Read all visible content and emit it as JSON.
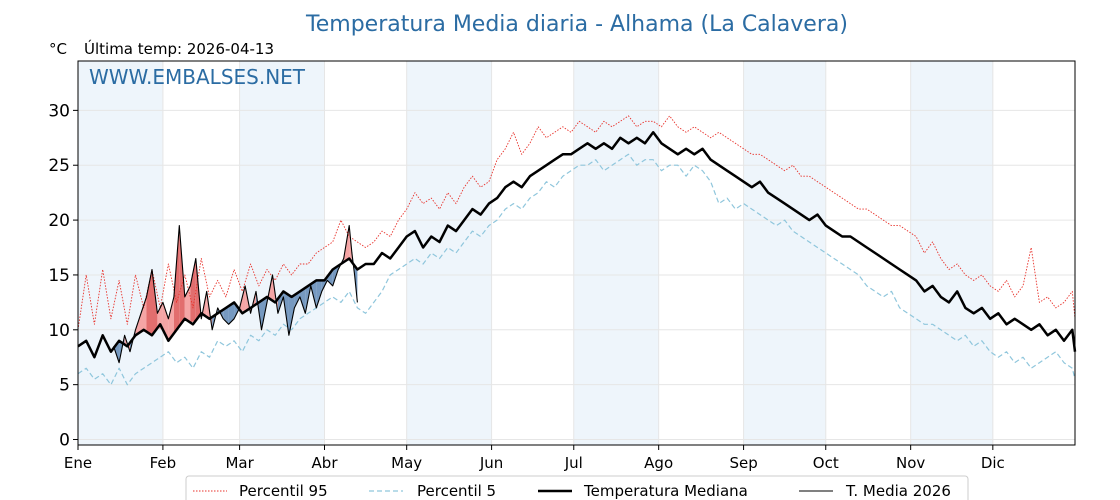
{
  "colors": {
    "title": "#2b6ca3",
    "p95": "#e8322b",
    "p5": "#8fc6dc",
    "median": "#000000",
    "current": "#000000",
    "above_fill": "#f4a0a0",
    "above_fill_strong": "#e06666",
    "below_fill": "#6f94bd",
    "band": "#eef5fb",
    "grid": "#e6e6e6"
  },
  "chart_data": {
    "type": "line",
    "title": "Temperatura Media diaria - Alhama (La Calavera)",
    "unit_label": "°C",
    "last_temp_label": "Última temp: 2026-04-13",
    "watermark": "WWW.EMBALSES.NET",
    "ylim": [
      -0.5,
      34.5
    ],
    "xlim": [
      1,
      365
    ],
    "y_ticks": [
      0,
      5,
      10,
      15,
      20,
      25,
      30
    ],
    "y_tick_labels": [
      "0",
      "5",
      "10",
      "15",
      "20",
      "25",
      "30"
    ],
    "x_ticks": [
      1,
      32,
      60,
      91,
      121,
      152,
      182,
      213,
      244,
      274,
      305,
      335
    ],
    "x_tick_labels": [
      "Ene",
      "Feb",
      "Mar",
      "Abr",
      "May",
      "Jun",
      "Jul",
      "Ago",
      "Sep",
      "Oct",
      "Nov",
      "Dic"
    ],
    "shaded_months": [
      "Ene",
      "Mar",
      "May",
      "Jul",
      "Sep",
      "Nov"
    ],
    "grid": true,
    "legend_position": "bottom-center",
    "series": [
      {
        "name": "Percentil 95",
        "style": "dotted-red",
        "x": [
          1,
          4,
          7,
          10,
          13,
          16,
          19,
          22,
          25,
          28,
          31,
          34,
          37,
          40,
          43,
          46,
          49,
          52,
          55,
          58,
          61,
          64,
          67,
          70,
          73,
          76,
          79,
          82,
          85,
          88,
          91,
          94,
          97,
          100,
          103,
          106,
          109,
          112,
          115,
          118,
          121,
          124,
          127,
          130,
          133,
          136,
          139,
          142,
          145,
          148,
          151,
          154,
          157,
          160,
          163,
          166,
          169,
          172,
          175,
          178,
          181,
          184,
          187,
          190,
          193,
          196,
          199,
          202,
          205,
          208,
          211,
          214,
          217,
          220,
          223,
          226,
          229,
          232,
          235,
          238,
          241,
          244,
          247,
          250,
          253,
          256,
          259,
          262,
          265,
          268,
          271,
          274,
          277,
          280,
          283,
          286,
          289,
          292,
          295,
          298,
          301,
          304,
          307,
          310,
          313,
          316,
          319,
          322,
          325,
          328,
          331,
          334,
          337,
          340,
          343,
          346,
          349,
          352,
          355,
          358,
          361,
          364,
          365
        ],
        "values": [
          10.0,
          15.0,
          10.5,
          15.5,
          11.0,
          14.5,
          10.5,
          15.0,
          12.0,
          15.5,
          12.0,
          16.0,
          12.5,
          15.0,
          12.0,
          16.5,
          13.0,
          14.5,
          13.0,
          15.5,
          13.5,
          16.0,
          14.0,
          15.5,
          14.5,
          16.0,
          15.0,
          16.0,
          16.0,
          17.0,
          17.5,
          18.0,
          20.0,
          18.5,
          18.0,
          17.5,
          18.0,
          19.0,
          18.5,
          20.0,
          21.0,
          22.5,
          21.5,
          22.0,
          21.0,
          22.5,
          21.5,
          23.0,
          24.0,
          23.0,
          23.5,
          25.5,
          26.5,
          28.0,
          26.0,
          27.0,
          28.5,
          27.5,
          28.0,
          28.5,
          28.0,
          29.0,
          28.5,
          28.0,
          29.0,
          28.5,
          29.0,
          29.5,
          28.5,
          29.0,
          29.0,
          28.5,
          29.5,
          28.5,
          28.0,
          28.5,
          28.0,
          27.5,
          28.0,
          27.5,
          27.0,
          26.5,
          26.0,
          26.0,
          25.5,
          25.0,
          24.5,
          25.0,
          24.0,
          24.0,
          23.5,
          23.0,
          22.5,
          22.0,
          21.5,
          21.0,
          21.0,
          20.5,
          20.0,
          19.5,
          19.5,
          19.0,
          18.5,
          17.0,
          18.0,
          16.5,
          15.5,
          16.0,
          15.0,
          14.5,
          15.0,
          14.0,
          13.5,
          14.5,
          13.0,
          14.0,
          17.5,
          12.5,
          13.0,
          12.0,
          12.5,
          13.5,
          11.0
        ]
      },
      {
        "name": "Percentil 5",
        "style": "dashed-lightblue",
        "x": [
          1,
          4,
          7,
          10,
          13,
          16,
          19,
          22,
          25,
          28,
          31,
          34,
          37,
          40,
          43,
          46,
          49,
          52,
          55,
          58,
          61,
          64,
          67,
          70,
          73,
          76,
          79,
          82,
          85,
          88,
          91,
          94,
          97,
          100,
          103,
          106,
          109,
          112,
          115,
          118,
          121,
          124,
          127,
          130,
          133,
          136,
          139,
          142,
          145,
          148,
          151,
          154,
          157,
          160,
          163,
          166,
          169,
          172,
          175,
          178,
          181,
          184,
          187,
          190,
          193,
          196,
          199,
          202,
          205,
          208,
          211,
          214,
          217,
          220,
          223,
          226,
          229,
          232,
          235,
          238,
          241,
          244,
          247,
          250,
          253,
          256,
          259,
          262,
          265,
          268,
          271,
          274,
          277,
          280,
          283,
          286,
          289,
          292,
          295,
          298,
          301,
          304,
          307,
          310,
          313,
          316,
          319,
          322,
          325,
          328,
          331,
          334,
          337,
          340,
          343,
          346,
          349,
          352,
          355,
          358,
          361,
          364,
          365
        ],
        "values": [
          6.0,
          6.5,
          5.5,
          6.0,
          5.0,
          6.5,
          5.0,
          6.0,
          6.5,
          7.0,
          7.5,
          8.0,
          7.0,
          7.5,
          6.5,
          8.0,
          7.5,
          9.0,
          8.5,
          9.0,
          8.0,
          9.5,
          9.0,
          10.0,
          9.5,
          10.5,
          10.0,
          11.0,
          11.5,
          12.0,
          12.5,
          13.0,
          12.5,
          13.5,
          12.0,
          11.5,
          12.5,
          13.5,
          15.0,
          15.5,
          16.0,
          16.5,
          16.0,
          17.0,
          16.5,
          17.5,
          17.0,
          18.0,
          19.0,
          18.5,
          19.5,
          20.0,
          21.0,
          21.5,
          21.0,
          22.0,
          22.5,
          23.5,
          23.0,
          24.0,
          24.5,
          25.0,
          25.0,
          25.5,
          24.5,
          25.0,
          25.5,
          26.0,
          25.0,
          25.5,
          25.5,
          24.5,
          25.0,
          25.0,
          24.0,
          25.0,
          24.5,
          23.5,
          21.5,
          22.0,
          21.0,
          21.5,
          21.0,
          20.5,
          20.0,
          19.5,
          20.0,
          19.0,
          18.5,
          18.0,
          17.5,
          17.0,
          16.5,
          16.0,
          15.5,
          15.0,
          14.0,
          13.5,
          13.0,
          13.5,
          12.0,
          11.5,
          11.0,
          10.5,
          10.5,
          10.0,
          9.5,
          9.0,
          9.5,
          8.5,
          9.0,
          8.0,
          7.5,
          8.0,
          7.0,
          7.5,
          6.5,
          7.0,
          7.5,
          8.0,
          7.0,
          6.5,
          5.5
        ]
      },
      {
        "name": "Temperatura Mediana",
        "style": "thick-black",
        "x": [
          1,
          4,
          7,
          10,
          13,
          16,
          19,
          22,
          25,
          28,
          31,
          34,
          37,
          40,
          43,
          46,
          49,
          52,
          55,
          58,
          61,
          64,
          67,
          70,
          73,
          76,
          79,
          82,
          85,
          88,
          91,
          94,
          97,
          100,
          103,
          106,
          109,
          112,
          115,
          118,
          121,
          124,
          127,
          130,
          133,
          136,
          139,
          142,
          145,
          148,
          151,
          154,
          157,
          160,
          163,
          166,
          169,
          172,
          175,
          178,
          181,
          184,
          187,
          190,
          193,
          196,
          199,
          202,
          205,
          208,
          211,
          214,
          217,
          220,
          223,
          226,
          229,
          232,
          235,
          238,
          241,
          244,
          247,
          250,
          253,
          256,
          259,
          262,
          265,
          268,
          271,
          274,
          277,
          280,
          283,
          286,
          289,
          292,
          295,
          298,
          301,
          304,
          307,
          310,
          313,
          316,
          319,
          322,
          325,
          328,
          331,
          334,
          337,
          340,
          343,
          346,
          349,
          352,
          355,
          358,
          361,
          364,
          365
        ],
        "values": [
          8.5,
          9.0,
          7.5,
          9.5,
          8.0,
          9.0,
          8.5,
          9.5,
          10.0,
          9.5,
          10.5,
          9.0,
          10.0,
          11.0,
          10.5,
          11.5,
          11.0,
          11.5,
          12.0,
          12.5,
          11.5,
          12.0,
          12.5,
          13.0,
          12.5,
          13.5,
          13.0,
          13.5,
          14.0,
          14.5,
          14.5,
          15.5,
          16.0,
          16.5,
          15.5,
          16.0,
          16.0,
          17.0,
          16.5,
          17.5,
          18.5,
          19.0,
          17.5,
          18.5,
          18.0,
          19.5,
          19.0,
          20.0,
          21.0,
          20.5,
          21.5,
          22.0,
          23.0,
          23.5,
          23.0,
          24.0,
          24.5,
          25.0,
          25.5,
          26.0,
          26.0,
          26.5,
          27.0,
          26.5,
          27.0,
          26.5,
          27.5,
          27.0,
          27.5,
          27.0,
          28.0,
          27.0,
          26.5,
          26.0,
          26.5,
          26.0,
          26.5,
          25.5,
          25.0,
          24.5,
          24.0,
          23.5,
          23.0,
          23.5,
          22.5,
          22.0,
          21.5,
          21.0,
          20.5,
          20.0,
          20.5,
          19.5,
          19.0,
          18.5,
          18.5,
          18.0,
          17.5,
          17.0,
          16.5,
          16.0,
          15.5,
          15.0,
          14.5,
          13.5,
          14.0,
          13.0,
          12.5,
          13.5,
          12.0,
          11.5,
          12.0,
          11.0,
          11.5,
          10.5,
          11.0,
          10.5,
          10.0,
          10.5,
          9.5,
          10.0,
          9.0,
          10.0,
          8.0
        ]
      },
      {
        "name": "T. Media 2026",
        "style": "thin-black",
        "x": [
          14,
          16,
          18,
          20,
          22,
          24,
          26,
          28,
          30,
          32,
          34,
          36,
          38,
          40,
          42,
          44,
          46,
          48,
          50,
          52,
          54,
          56,
          58,
          60,
          62,
          64,
          66,
          68,
          70,
          72,
          74,
          76,
          78,
          80,
          82,
          84,
          86,
          88,
          90,
          92,
          94,
          96,
          98,
          100,
          101,
          102,
          103
        ],
        "values": [
          8.5,
          7.0,
          9.5,
          8.0,
          10.0,
          11.5,
          13.0,
          15.5,
          11.5,
          12.5,
          11.0,
          13.0,
          19.5,
          13.0,
          14.0,
          16.5,
          11.0,
          13.5,
          10.0,
          12.0,
          11.0,
          10.5,
          11.0,
          12.0,
          14.0,
          11.5,
          13.5,
          10.0,
          12.5,
          15.0,
          11.5,
          13.0,
          9.5,
          12.0,
          13.0,
          11.5,
          14.0,
          12.0,
          13.5,
          14.5,
          14.0,
          15.5,
          16.5,
          19.5,
          17.0,
          15.0,
          12.5
        ]
      }
    ]
  },
  "legend": {
    "items": [
      {
        "label": "Percentil 95"
      },
      {
        "label": "Percentil 5"
      },
      {
        "label": "Temperatura Mediana"
      },
      {
        "label": "T. Media 2026"
      }
    ]
  }
}
